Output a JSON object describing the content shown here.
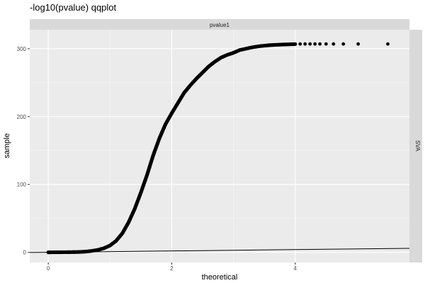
{
  "chart_data": {
    "type": "scatter",
    "title": "-log10(pvalue) qqplot",
    "xlabel": "theoretical",
    "ylabel": "sample",
    "facet_col_label": "pvalue1",
    "facet_row_label": "SVA",
    "xlim": [
      -0.3,
      5.85
    ],
    "ylim": [
      -15,
      328
    ],
    "x_ticks": [
      0,
      2,
      4
    ],
    "y_ticks": [
      0,
      100,
      200,
      300
    ],
    "grid": true,
    "legend": "none",
    "reference_line": {
      "slope": 1,
      "intercept": 0
    },
    "series": [
      {
        "curve": [
          [
            0.0,
            0.0
          ],
          [
            0.3,
            0.2
          ],
          [
            0.5,
            0.5
          ],
          [
            0.6,
            1
          ],
          [
            0.7,
            2
          ],
          [
            0.8,
            3.5
          ],
          [
            0.9,
            6
          ],
          [
            1.0,
            10
          ],
          [
            1.1,
            17
          ],
          [
            1.2,
            28
          ],
          [
            1.3,
            44
          ],
          [
            1.4,
            64
          ],
          [
            1.5,
            88
          ],
          [
            1.6,
            114
          ],
          [
            1.7,
            143
          ],
          [
            1.8,
            168
          ],
          [
            1.9,
            189
          ],
          [
            2.0,
            205
          ],
          [
            2.1,
            220
          ],
          [
            2.2,
            235
          ],
          [
            2.3,
            246
          ],
          [
            2.4,
            256
          ],
          [
            2.5,
            265
          ],
          [
            2.6,
            274
          ],
          [
            2.7,
            281
          ],
          [
            2.8,
            287
          ],
          [
            2.9,
            291
          ],
          [
            3.0,
            294
          ],
          [
            3.1,
            298
          ],
          [
            3.2,
            300
          ],
          [
            3.3,
            302
          ],
          [
            3.4,
            303.5
          ],
          [
            3.5,
            304.5
          ],
          [
            3.6,
            305.3
          ],
          [
            3.7,
            305.8
          ],
          [
            3.8,
            306.2
          ],
          [
            3.9,
            306.5
          ],
          [
            4.0,
            306.8
          ]
        ],
        "tail_points": [
          [
            4.08,
            307
          ],
          [
            4.16,
            307
          ],
          [
            4.24,
            307
          ],
          [
            4.32,
            307
          ],
          [
            4.4,
            307
          ],
          [
            4.5,
            307
          ],
          [
            4.62,
            307
          ],
          [
            4.78,
            307
          ],
          [
            5.02,
            307
          ],
          [
            5.5,
            307
          ]
        ]
      }
    ]
  }
}
